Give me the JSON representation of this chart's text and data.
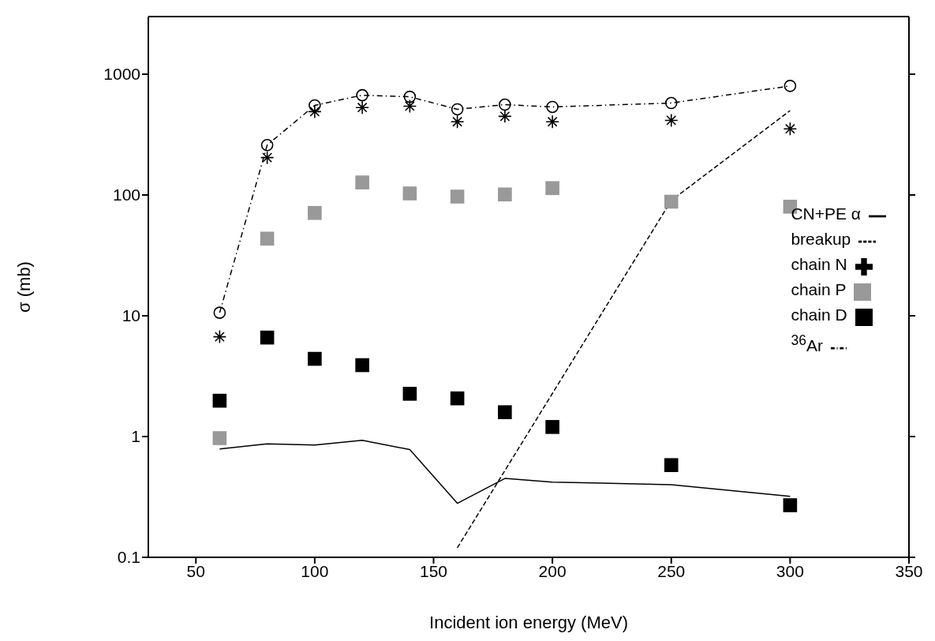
{
  "chart_data": {
    "type": "scatter",
    "xlabel": "Incident ion energy (MeV)",
    "ylabel": "σ (mb)",
    "xlim": [
      30,
      350
    ],
    "xticks": [
      50,
      100,
      150,
      200,
      250,
      300,
      350
    ],
    "ylim": [
      0.1,
      3000
    ],
    "yticks": [
      0.1,
      1,
      10,
      100,
      1000
    ],
    "log": "y",
    "grid": false,
    "legend": "right",
    "x": [
      60,
      80,
      100,
      120,
      140,
      160,
      180,
      200,
      250,
      300
    ],
    "series": [
      {
        "name": "CN+PE α",
        "type": "line",
        "color": "#000000",
        "marker": "none",
        "line_style": "solid",
        "values": [
          0.79,
          0.87,
          0.85,
          0.93,
          0.78,
          0.28,
          0.45,
          0.42,
          0.4,
          0.32
        ]
      },
      {
        "name": "breakup",
        "type": "line",
        "color": "#000000",
        "marker": "none",
        "line_style": "dashed",
        "x": [
          160,
          250,
          300
        ],
        "values": [
          0.12,
          90,
          500
        ]
      },
      {
        "name": "chain N",
        "type": "scatter",
        "color": "#000000",
        "marker": "cross",
        "values": [
          6.7,
          204,
          490,
          530,
          544,
          404,
          448,
          404,
          415,
          353
        ]
      },
      {
        "name": "chain P",
        "type": "scatter",
        "color": "#999999",
        "marker": "square",
        "values": [
          0.97,
          43.5,
          71,
          127,
          103,
          97,
          101,
          114,
          88,
          80
        ]
      },
      {
        "name": "chain D",
        "type": "scatter",
        "color": "#000000",
        "marker": "square",
        "values": [
          1.98,
          6.6,
          4.4,
          3.9,
          2.26,
          2.07,
          1.59,
          1.2,
          0.58,
          0.27
        ]
      },
      {
        "name": "$^{36}$Ar",
        "type": "line",
        "color": "#000000",
        "marker": "circle",
        "line_style": "dotted",
        "values": [
          10.6,
          259,
          552,
          670,
          650,
          512,
          560,
          536,
          577,
          800
        ]
      }
    ]
  }
}
